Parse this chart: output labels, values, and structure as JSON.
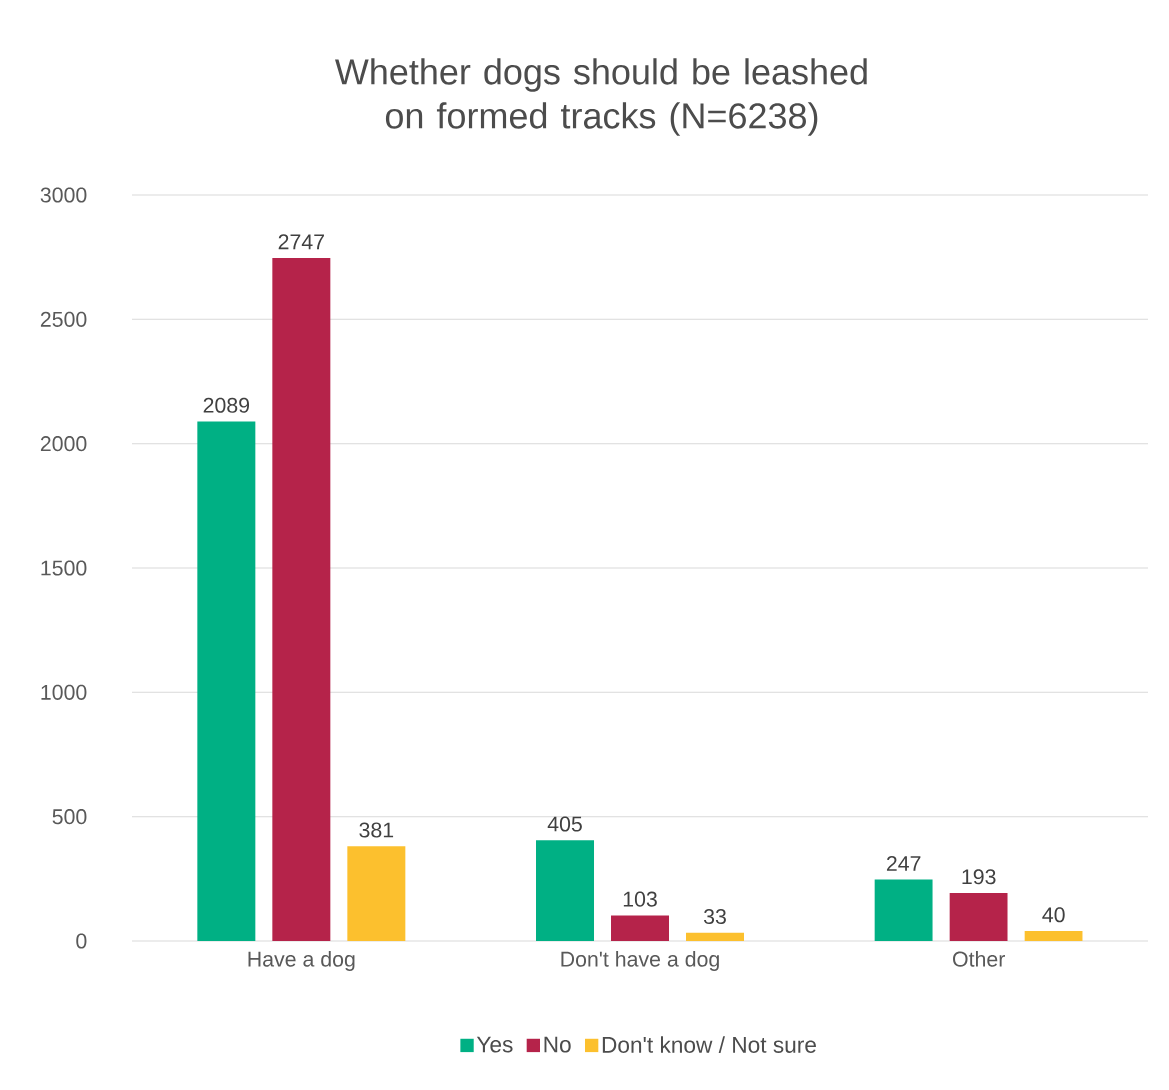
{
  "chart_data": {
    "type": "bar",
    "title": "Whether dogs should be leashed on formed tracks (N=6238)",
    "categories": [
      "Have a dog",
      "Don't have a dog",
      "Other"
    ],
    "series": [
      {
        "name": "Yes",
        "color": "#00b084",
        "values": [
          2089,
          405,
          247
        ]
      },
      {
        "name": "No",
        "color": "#b5234a",
        "values": [
          2747,
          103,
          193
        ]
      },
      {
        "name": "Don't know / Not sure",
        "color": "#fcc02e",
        "values": [
          381,
          33,
          40
        ]
      }
    ],
    "ylim": [
      0,
      3000
    ],
    "yticks": [
      0,
      500,
      1000,
      1500,
      2000,
      2500,
      3000
    ],
    "grid": "y",
    "legend": "bottom",
    "data_labels": true
  }
}
